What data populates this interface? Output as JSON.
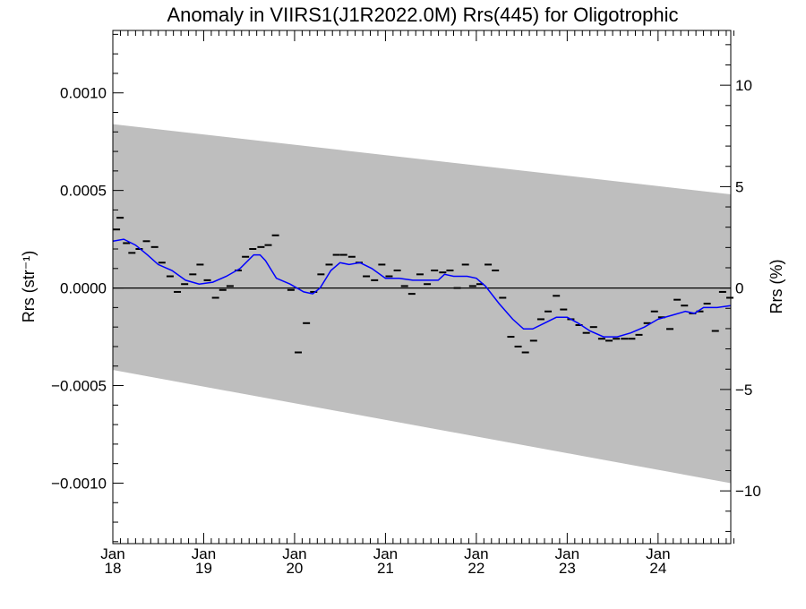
{
  "chart_data": {
    "type": "line",
    "title": "Anomaly in VIIRS1(J1R2022.0M) Rrs(445) for Oligotrophic",
    "ylabel_left": "Rrs (str⁻¹)",
    "ylabel_right": "Rrs (%)",
    "xlabel": "",
    "xlim": [
      2018.0,
      2024.8
    ],
    "ylim": [
      -0.00131,
      0.00132
    ],
    "ylim_right_percent": [
      -12.6,
      12.7
    ],
    "x_ticks": [
      {
        "x": 2018,
        "label1": "Jan",
        "label2": "18"
      },
      {
        "x": 2019,
        "label1": "Jan",
        "label2": "19"
      },
      {
        "x": 2020,
        "label1": "Jan",
        "label2": "20"
      },
      {
        "x": 2021,
        "label1": "Jan",
        "label2": "21"
      },
      {
        "x": 2022,
        "label1": "Jan",
        "label2": "22"
      },
      {
        "x": 2023,
        "label1": "Jan",
        "label2": "23"
      },
      {
        "x": 2024,
        "label1": "Jan",
        "label2": "24"
      }
    ],
    "y_ticks_left": [
      {
        "y": 0.001,
        "label": "0.0010"
      },
      {
        "y": 0.0005,
        "label": "0.0005"
      },
      {
        "y": 0.0,
        "label": "0.0000"
      },
      {
        "y": -0.0005,
        "label": "−0.0005"
      },
      {
        "y": -0.001,
        "label": "−0.0010"
      }
    ],
    "y_ticks_right": [
      {
        "y": 10,
        "label": "10"
      },
      {
        "y": 5,
        "label": "5"
      },
      {
        "y": 0,
        "label": "0"
      },
      {
        "y": -5,
        "label": "−5"
      },
      {
        "y": -10,
        "label": "−10"
      }
    ],
    "band": {
      "color": "#bebebe",
      "upper": [
        [
          2018.0,
          0.00084
        ],
        [
          2024.8,
          0.00048
        ]
      ],
      "lower": [
        [
          2018.0,
          -0.00042
        ],
        [
          2024.8,
          -0.001
        ]
      ]
    },
    "zero_line": 0.0,
    "series": [
      {
        "style": "dash-markers",
        "color": "#000000",
        "points": [
          [
            2018.04,
            0.0003
          ],
          [
            2018.08,
            0.00036
          ],
          [
            2018.15,
            0.00023
          ],
          [
            2018.21,
            0.00018
          ],
          [
            2018.29,
            0.0002
          ],
          [
            2018.37,
            0.00024
          ],
          [
            2018.46,
            0.00021
          ],
          [
            2018.54,
            0.00013
          ],
          [
            2018.63,
            6e-05
          ],
          [
            2018.71,
            -2e-05
          ],
          [
            2018.79,
            2e-05
          ],
          [
            2018.88,
            7e-05
          ],
          [
            2018.96,
            0.00012
          ],
          [
            2019.04,
            4e-05
          ],
          [
            2019.13,
            -5e-05
          ],
          [
            2019.21,
            -1e-05
          ],
          [
            2019.29,
            1e-05
          ],
          [
            2019.38,
            9e-05
          ],
          [
            2019.46,
            0.00016
          ],
          [
            2019.54,
            0.0002
          ],
          [
            2019.63,
            0.00021
          ],
          [
            2019.71,
            0.00022
          ],
          [
            2019.79,
            0.00027
          ],
          [
            2019.96,
            -1e-05
          ],
          [
            2020.04,
            -0.00033
          ],
          [
            2020.13,
            -0.00018
          ],
          [
            2020.21,
            -2e-05
          ],
          [
            2020.29,
            7e-05
          ],
          [
            2020.38,
            0.00012
          ],
          [
            2020.46,
            0.00017
          ],
          [
            2020.54,
            0.00017
          ],
          [
            2020.63,
            0.00016
          ],
          [
            2020.71,
            0.00013
          ],
          [
            2020.79,
            6e-05
          ],
          [
            2020.88,
            4e-05
          ],
          [
            2020.96,
            0.00012
          ],
          [
            2021.04,
            6e-05
          ],
          [
            2021.13,
            9e-05
          ],
          [
            2021.21,
            1e-05
          ],
          [
            2021.29,
            -3e-05
          ],
          [
            2021.38,
            7e-05
          ],
          [
            2021.46,
            2e-05
          ],
          [
            2021.54,
            9e-05
          ],
          [
            2021.63,
            8e-05
          ],
          [
            2021.71,
            9e-05
          ],
          [
            2021.79,
            0.0
          ],
          [
            2021.88,
            0.00012
          ],
          [
            2021.96,
            1e-05
          ],
          [
            2022.04,
            2e-05
          ],
          [
            2022.13,
            0.00012
          ],
          [
            2022.21,
            9e-05
          ],
          [
            2022.29,
            -5e-05
          ],
          [
            2022.38,
            -0.00025
          ],
          [
            2022.46,
            -0.0003
          ],
          [
            2022.54,
            -0.00033
          ],
          [
            2022.63,
            -0.00027
          ],
          [
            2022.71,
            -0.00016
          ],
          [
            2022.79,
            -0.00012
          ],
          [
            2022.88,
            -4e-05
          ],
          [
            2022.96,
            -0.00011
          ],
          [
            2023.04,
            -0.00016
          ],
          [
            2023.13,
            -0.00019
          ],
          [
            2023.21,
            -0.00023
          ],
          [
            2023.29,
            -0.0002
          ],
          [
            2023.38,
            -0.00026
          ],
          [
            2023.46,
            -0.00027
          ],
          [
            2023.54,
            -0.00026
          ],
          [
            2023.63,
            -0.00026
          ],
          [
            2023.71,
            -0.00026
          ],
          [
            2023.79,
            -0.00024
          ],
          [
            2023.88,
            -0.00018
          ],
          [
            2023.96,
            -0.00012
          ],
          [
            2024.04,
            -0.00015
          ],
          [
            2024.13,
            -0.00021
          ],
          [
            2024.21,
            -6e-05
          ],
          [
            2024.29,
            -9e-05
          ],
          [
            2024.38,
            -0.00013
          ],
          [
            2024.46,
            -0.00012
          ],
          [
            2024.54,
            -8e-05
          ],
          [
            2024.63,
            -0.00022
          ],
          [
            2024.71,
            -2e-05
          ],
          [
            2024.79,
            -5e-05
          ]
        ]
      },
      {
        "style": "line",
        "color": "#0000ff",
        "points": [
          [
            2018.0,
            0.00024
          ],
          [
            2018.12,
            0.00025
          ],
          [
            2018.25,
            0.00022
          ],
          [
            2018.38,
            0.00017
          ],
          [
            2018.5,
            0.00012
          ],
          [
            2018.65,
            9e-05
          ],
          [
            2018.8,
            4e-05
          ],
          [
            2018.95,
            2e-05
          ],
          [
            2019.1,
            3e-05
          ],
          [
            2019.25,
            6e-05
          ],
          [
            2019.4,
            0.0001
          ],
          [
            2019.55,
            0.00017
          ],
          [
            2019.62,
            0.00017
          ],
          [
            2019.68,
            0.00014
          ],
          [
            2019.8,
            5e-05
          ],
          [
            2019.95,
            2e-05
          ],
          [
            2020.1,
            -2e-05
          ],
          [
            2020.2,
            -3e-05
          ],
          [
            2020.28,
            0.0
          ],
          [
            2020.4,
            9e-05
          ],
          [
            2020.5,
            0.00013
          ],
          [
            2020.6,
            0.00012
          ],
          [
            2020.72,
            0.00013
          ],
          [
            2020.85,
            0.0001
          ],
          [
            2021.0,
            5e-05
          ],
          [
            2021.15,
            5e-05
          ],
          [
            2021.3,
            4e-05
          ],
          [
            2021.45,
            4e-05
          ],
          [
            2021.58,
            4e-05
          ],
          [
            2021.65,
            7e-05
          ],
          [
            2021.75,
            6e-05
          ],
          [
            2021.9,
            6e-05
          ],
          [
            2022.0,
            5e-05
          ],
          [
            2022.1,
            1e-05
          ],
          [
            2022.25,
            -8e-05
          ],
          [
            2022.4,
            -0.00016
          ],
          [
            2022.52,
            -0.00021
          ],
          [
            2022.62,
            -0.00021
          ],
          [
            2022.75,
            -0.00018
          ],
          [
            2022.88,
            -0.00015
          ],
          [
            2023.0,
            -0.00015
          ],
          [
            2023.12,
            -0.00018
          ],
          [
            2023.25,
            -0.00022
          ],
          [
            2023.4,
            -0.00025
          ],
          [
            2023.55,
            -0.00025
          ],
          [
            2023.7,
            -0.00023
          ],
          [
            2023.85,
            -0.0002
          ],
          [
            2024.0,
            -0.00016
          ],
          [
            2024.15,
            -0.00014
          ],
          [
            2024.3,
            -0.00012
          ],
          [
            2024.4,
            -0.00013
          ],
          [
            2024.5,
            -0.0001
          ],
          [
            2024.65,
            -0.0001
          ],
          [
            2024.8,
            -9e-05
          ]
        ]
      }
    ]
  }
}
